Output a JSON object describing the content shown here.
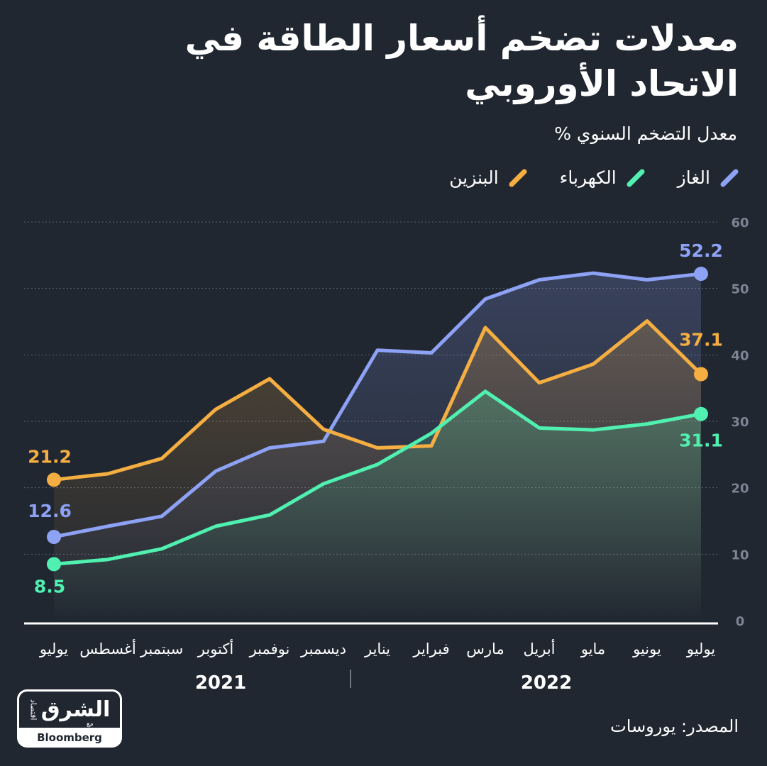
{
  "title": "معدلات تضخم أسعار الطاقة في الاتحاد الأوروبي",
  "subtitle": "معدل التضخم السنوي %",
  "source": "المصدر: يوروسات",
  "logo": {
    "main": "الشرق",
    "sub": "اقتصاد",
    "with": "مع",
    "partner": "Bloomberg"
  },
  "colors": {
    "gas": "#8ea2f5",
    "electricity": "#4ff0b0",
    "petrol": "#f5ae41",
    "background": "#212731"
  },
  "chart_data": {
    "type": "line",
    "x": [
      "يوليو",
      "أغسطس",
      "سبتمبر",
      "أكتوبر",
      "نوفمبر",
      "ديسمبر",
      "يناير",
      "فبراير",
      "مارس",
      "أبريل",
      "مايو",
      "يونيو",
      "يوليو"
    ],
    "years": [
      {
        "label": "2021",
        "from": 0,
        "to": 5
      },
      {
        "label": "2022",
        "from": 6,
        "to": 12
      }
    ],
    "series": [
      {
        "key": "gas",
        "name": "الغاز",
        "color": "#8ea2f5",
        "values": [
          12.6,
          14.2,
          15.7,
          22.5,
          26.0,
          27.0,
          40.7,
          40.3,
          48.4,
          51.3,
          52.3,
          51.3,
          52.2
        ],
        "label_first": "12.6",
        "label_last": "52.2"
      },
      {
        "key": "electricity",
        "name": "الكهرباء",
        "color": "#4ff0b0",
        "values": [
          8.5,
          9.2,
          10.8,
          14.2,
          15.9,
          20.6,
          23.5,
          28.2,
          34.5,
          29.0,
          28.7,
          29.6,
          31.1
        ],
        "label_first": "8.5",
        "label_last": "31.1"
      },
      {
        "key": "petrol",
        "name": "البنزين",
        "color": "#f5ae41",
        "values": [
          21.2,
          22.1,
          24.4,
          31.8,
          36.4,
          28.8,
          26.0,
          26.3,
          44.1,
          35.8,
          38.6,
          45.1,
          37.1
        ],
        "label_first": "21.2",
        "label_last": "37.1"
      }
    ],
    "yticks": [
      "0",
      "10",
      "20",
      "30",
      "40",
      "50",
      "60"
    ],
    "ylim": [
      0,
      60
    ],
    "grid": true,
    "legend": "top-right"
  }
}
